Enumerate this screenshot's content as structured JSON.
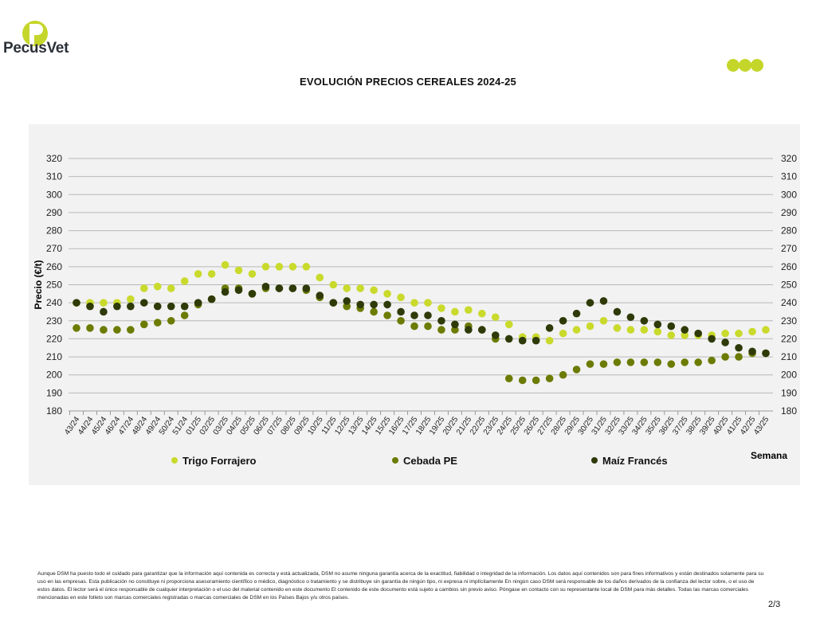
{
  "brand": {
    "name": "PecusVet"
  },
  "page_number": "2/3",
  "disclaimer": "Aunque DSM ha puesto todo el cuidado para garantizar que la información aquí contenida es correcta y está actualizada, DSM no asume ninguna garantía acerca de la exactitud, fiabilidad o integridad de la información. Los datos aquí contenidos son para fines informativos y están destinados solamente para su uso en las empresas. Esta publicación no constituye ni proporciona asesoramiento científico o médico, diagnóstico o tratamiento y se distribuye sin garantía de ningún tipo, ni expresa ni implícitamente En ningún caso DSM será responsable de los daños derivados de la confianza del lector sobre, o el uso de estos datos. El lector será el único responsable de cualquier interpretación o el uso del material contenido en este documento El contenido de este documento está sujeto a cambios sin previo aviso. Póngase en contacto con su representante local de DSM para más detalles. Todas las marcas comerciales mencionadas en este folleto son marcas comerciales registradas o marcas comerciales de DSM en los Países Bajos y/u otros países.",
  "chart_data": {
    "type": "scatter",
    "title": "EVOLUCIÓN PRECIOS CEREALES 2024-25",
    "xlabel": "Semana",
    "ylabel": "Precio (€/t)",
    "ylim": [
      180,
      320
    ],
    "yticks": [
      180,
      190,
      200,
      210,
      220,
      230,
      240,
      250,
      260,
      270,
      280,
      290,
      300,
      310,
      320
    ],
    "grid": true,
    "legend_position": "bottom",
    "categories": [
      "43/24",
      "44/24",
      "45/24",
      "46/24",
      "47/24",
      "48/24",
      "49/24",
      "50/24",
      "51/24",
      "01/25",
      "02/25",
      "03/25",
      "04/25",
      "05/25",
      "06/25",
      "07/25",
      "08/25",
      "09/25",
      "10/25",
      "11/25",
      "12/25",
      "13/25",
      "14/25",
      "15/25",
      "16/25",
      "17/25",
      "18/25",
      "19/25",
      "20/25",
      "21/25",
      "22/25",
      "23/25",
      "24/25",
      "25/25",
      "26/25",
      "27/25",
      "28/25",
      "29/25",
      "30/25",
      "31/25",
      "32/25",
      "33/25",
      "34/25",
      "35/25",
      "36/25",
      "37/25",
      "38/25",
      "39/25",
      "40/25",
      "41/25",
      "42/25",
      "43/25"
    ],
    "series": [
      {
        "name": "Trigo Forrajero",
        "color": "#c9da2c",
        "values": [
          240,
          240,
          240,
          240,
          242,
          248,
          249,
          248,
          252,
          256,
          256,
          261,
          258,
          256,
          260,
          260,
          260,
          260,
          254,
          250,
          248,
          248,
          247,
          245,
          243,
          240,
          240,
          237,
          235,
          236,
          234,
          232,
          228,
          221,
          221,
          219,
          223,
          225,
          227,
          230,
          226,
          225,
          225,
          224,
          222,
          222,
          222,
          222,
          223,
          223,
          224,
          225
        ]
      },
      {
        "name": "Cebada PE",
        "color": "#6c7b02",
        "values": [
          226,
          226,
          225,
          225,
          225,
          228,
          229,
          230,
          233,
          239,
          242,
          248,
          248,
          245,
          248,
          248,
          248,
          247,
          243,
          240,
          238,
          237,
          235,
          233,
          230,
          227,
          227,
          225,
          225,
          227,
          225,
          220,
          198,
          197,
          197,
          198,
          200,
          203,
          206,
          206,
          207,
          207,
          207,
          207,
          206,
          207,
          207,
          208,
          210,
          210,
          212,
          212
        ]
      },
      {
        "name": "Maíz Francés",
        "color": "#2e3a08",
        "values": [
          240,
          238,
          235,
          238,
          238,
          240,
          238,
          238,
          238,
          240,
          242,
          246,
          247,
          245,
          249,
          248,
          248,
          248,
          244,
          240,
          241,
          239,
          239,
          239,
          235,
          233,
          233,
          230,
          228,
          225,
          225,
          222,
          220,
          219,
          219,
          226,
          230,
          234,
          240,
          241,
          235,
          232,
          230,
          228,
          227,
          225,
          223,
          220,
          218,
          215,
          213,
          212
        ]
      }
    ]
  }
}
